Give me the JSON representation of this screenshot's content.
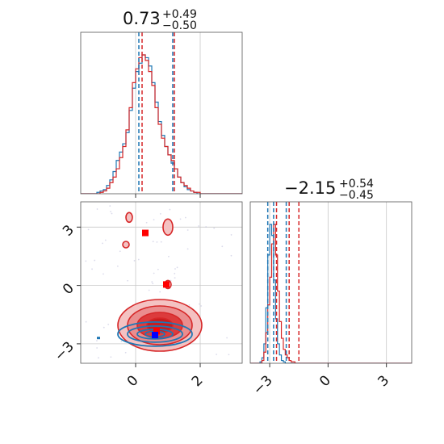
{
  "colors": {
    "series_a": "#1f77b4",
    "series_b": "#d62728",
    "grid": "#c8c8c8",
    "frame": "#555555"
  },
  "chart_data": {
    "type": "corner",
    "series": [
      {
        "name": "",
        "color": "#1f77b4",
        "mean": [
          0.6,
          -2.55
        ]
      },
      {
        "name": "",
        "color": "#d62728",
        "mean": [
          0.6,
          -2.1
        ]
      }
    ],
    "parameters": [
      {
        "title": {
          "median": "0.73",
          "plus": "+0.49",
          "minus": "−0.50"
        },
        "range": [
          -1.7,
          3.3
        ],
        "ticks": [
          0,
          2
        ],
        "tick_labels": [
          "0",
          "2"
        ]
      },
      {
        "title": {
          "median": "−2.15",
          "plus": "+0.54",
          "minus": "−0.45"
        },
        "range": [
          -4.0,
          4.3
        ],
        "ticks": [
          -3,
          0,
          3
        ],
        "tick_labels": [
          "−3",
          "0",
          "3"
        ]
      }
    ],
    "quantiles": {
      "blue": {
        "p0": [
          0.1,
          1.15
        ],
        "p1": [
          -3.1,
          -2.8,
          -2.15
        ]
      },
      "red": {
        "p0": [
          0.2,
          1.2
        ],
        "p1": [
          -2.65,
          -2.0,
          -1.5
        ]
      }
    },
    "hist_p0": {
      "edges_start": -1.7,
      "bin_width": 0.1,
      "blue": [
        0,
        0,
        0,
        0,
        0,
        1,
        2,
        3,
        6,
        10,
        16,
        24,
        30,
        36,
        44,
        60,
        76,
        88,
        94,
        100,
        98,
        92,
        80,
        66,
        52,
        42,
        34,
        28,
        22,
        18,
        12,
        8,
        5,
        3,
        2,
        1,
        0,
        0,
        0,
        0,
        0,
        0,
        0,
        0,
        0,
        0,
        0,
        0,
        0,
        0
      ],
      "red": [
        0,
        0,
        0,
        0,
        0,
        0,
        1,
        2,
        4,
        8,
        12,
        18,
        26,
        34,
        46,
        62,
        80,
        90,
        98,
        100,
        96,
        88,
        78,
        62,
        50,
        40,
        34,
        28,
        24,
        18,
        12,
        8,
        6,
        4,
        2,
        1,
        1,
        0,
        0,
        0,
        0,
        0,
        0,
        0,
        0,
        0,
        0,
        0,
        0,
        0
      ]
    },
    "hist_p1": {
      "edges_start": -4.0,
      "bin_width": 0.1,
      "blue": [
        0,
        0,
        0,
        0,
        0,
        1,
        4,
        14,
        40,
        78,
        100,
        92,
        60,
        32,
        14,
        6,
        2,
        1,
        0,
        0,
        0,
        0,
        0,
        0,
        0,
        0,
        0,
        0,
        0,
        0,
        0,
        0,
        0,
        0,
        0,
        0,
        0,
        0,
        0,
        0,
        0,
        0,
        0,
        0,
        0,
        0,
        0,
        0,
        0,
        0,
        0,
        0,
        0,
        0,
        0,
        0,
        0,
        0,
        0,
        0,
        0,
        0,
        0,
        0,
        0,
        0,
        0,
        0,
        0,
        0,
        0,
        0,
        0,
        0,
        0,
        0,
        0,
        0,
        0,
        0,
        0,
        0,
        0
      ],
      "red": [
        0,
        0,
        0,
        0,
        0,
        0,
        2,
        8,
        22,
        42,
        62,
        86,
        100,
        78,
        52,
        30,
        18,
        10,
        6,
        4,
        2,
        1,
        1,
        0,
        0,
        0,
        0,
        0,
        0,
        0,
        0,
        0,
        0,
        0,
        0,
        0,
        0,
        0,
        0,
        0,
        0,
        0,
        0,
        0,
        0,
        0,
        0,
        0,
        0,
        0,
        0,
        0,
        0,
        0,
        0,
        0,
        0,
        0,
        0,
        0,
        0,
        0,
        0,
        0,
        0,
        0,
        0,
        0,
        0,
        0,
        0,
        0,
        0,
        0,
        0,
        0,
        0,
        0,
        0,
        0,
        0,
        0,
        0
      ]
    },
    "outlier_markers": [
      {
        "series": "red",
        "x": 0.3,
        "y": 2.7
      },
      {
        "series": "red",
        "x": 0.95,
        "y": 0.05
      },
      {
        "series": "red",
        "x": 0.65,
        "y": -2.35
      },
      {
        "series": "blue",
        "x": 0.6,
        "y": -2.55
      }
    ],
    "grid": true
  }
}
